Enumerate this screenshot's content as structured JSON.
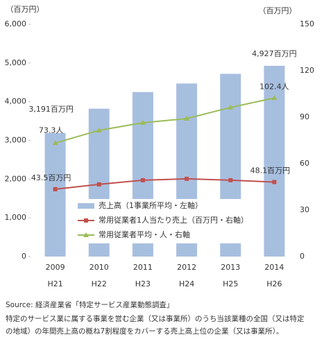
{
  "chart_data": {
    "type": "bar-line",
    "y_unit_label": "（百万円）",
    "y2_unit_label": "（百万円）",
    "categories": [
      "2009",
      "2010",
      "2011",
      "2012",
      "2013",
      "2014"
    ],
    "categories_secondary": [
      "H21",
      "H22",
      "H23",
      "H24",
      "H25",
      "H26"
    ],
    "ylim": [
      0,
      6000
    ],
    "yticks": [
      0,
      {
        "value": 1000,
        "label": "1,000"
      },
      {
        "value": 2000,
        "label": "2,000"
      },
      {
        "value": 3000,
        "label": "3,000"
      },
      {
        "value": 4000,
        "label": "4,000"
      },
      {
        "value": 5000,
        "label": "5,000"
      },
      {
        "value": 6000,
        "label": "6,000"
      }
    ],
    "y2lim": [
      0,
      150
    ],
    "y2ticks": [
      0,
      30,
      60,
      90,
      120,
      150
    ],
    "grid": false,
    "legend": "center",
    "series": [
      {
        "name": "売上高（1事業所平均・左軸）",
        "type": "bar",
        "color": "#a7bfdf",
        "values": [
          3191,
          3820,
          4250,
          4470,
          4720,
          4927
        ],
        "value_labels": [
          "3,191百万円",
          null,
          null,
          null,
          null,
          "4,927百万円"
        ]
      },
      {
        "name": "常用従業者1人当たり売上（百万円・右軸）",
        "type": "line",
        "axis": "y2",
        "color": "#c0504d",
        "values": [
          43.5,
          46.6,
          49.3,
          50.2,
          49.3,
          48.1
        ],
        "value_labels": [
          "43.5百万円",
          null,
          null,
          null,
          null,
          "48.1百万円"
        ]
      },
      {
        "name": "常用従業者平均・人・右軸",
        "type": "line",
        "axis": "y2",
        "color": "#9bbb59",
        "values": [
          73.3,
          81.5,
          86.4,
          89.1,
          96.3,
          102.4
        ],
        "value_labels": [
          "73.3人",
          null,
          null,
          null,
          null,
          "102.4人"
        ]
      }
    ],
    "source": "Source: 経済産業省「特定サービス産業動態調査」",
    "note": [
      "特定のサービス業に属する事業を営む企業（又は事業所）のうち当該業種の全国（又は特定",
      "の地域）の年間売上高の概ね7割程度をカバーする売上高上位の企業（又は事業所）。"
    ]
  }
}
